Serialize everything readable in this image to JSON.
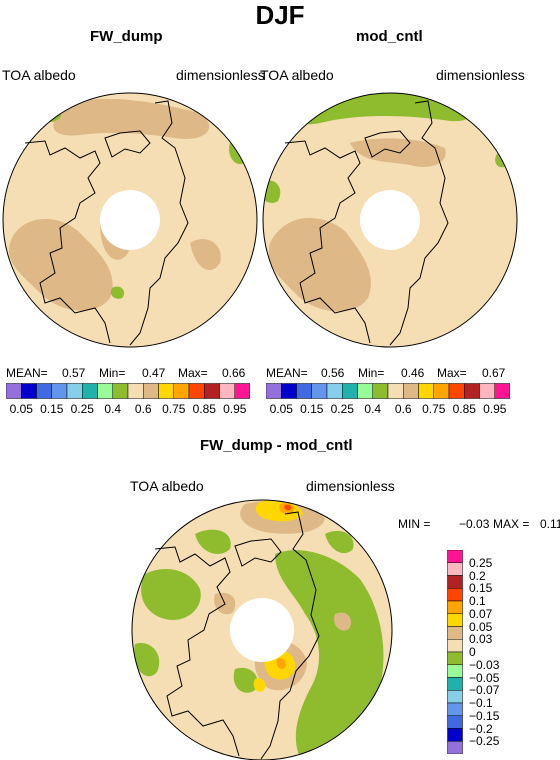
{
  "figure": {
    "title": "DJF"
  },
  "panels": [
    {
      "title": "FW_dump",
      "left_label": "TOA albedo",
      "right_label": "dimensionless",
      "stats": {
        "mean_label": "MEAN=",
        "mean": "0.57",
        "min_label": "Min=",
        "min": "0.47",
        "max_label": "Max=",
        "max": "0.66"
      }
    },
    {
      "title": "mod_cntl",
      "left_label": "TOA albedo",
      "right_label": "dimensionless",
      "stats": {
        "mean_label": "MEAN=",
        "mean": "0.56",
        "min_label": "Min=",
        "min": "0.46",
        "max_label": "Max=",
        "max": "0.67"
      }
    },
    {
      "title": "FW_dump - mod_cntl",
      "left_label": "TOA albedo",
      "right_label": "dimensionless",
      "minmax": {
        "min_label": "MIN =",
        "min": "−0.03",
        "max_label": "MAX =",
        "max": "0.11"
      }
    }
  ],
  "colorbar_top": {
    "colors": [
      "#9370db",
      "#0000cd",
      "#4169e1",
      "#6495ed",
      "#87ceeb",
      "#20b2aa",
      "#98fb98",
      "#8fbc2f",
      "#f5deb3",
      "#deb887",
      "#ffd700",
      "#ffa500",
      "#ff4500",
      "#b22222",
      "#ffb6c1",
      "#ff1493"
    ],
    "tick_labels": [
      "0.05",
      "0.15",
      "0.25",
      "0.4",
      "0.6",
      "0.75",
      "0.85",
      "0.95"
    ]
  },
  "colorbar_diff": {
    "colors": [
      "#ff1493",
      "#ffb6c1",
      "#b22222",
      "#ff4500",
      "#ffa500",
      "#ffd700",
      "#deb887",
      "#f5deb3",
      "#8fbc2f",
      "#98fb98",
      "#20b2aa",
      "#87ceeb",
      "#6495ed",
      "#4169e1",
      "#0000cd",
      "#9370db"
    ],
    "tick_labels": [
      "0.25",
      "0.2",
      "0.15",
      "0.1",
      "0.07",
      "0.05",
      "0.03",
      "0",
      "−0.03",
      "−0.05",
      "−0.07",
      "−0.1",
      "−0.15",
      "−0.2",
      "−0.25"
    ]
  },
  "map_colors": {
    "base": "#f5deb3",
    "tan": "#deb887",
    "green": "#8fbc2f",
    "yellow": "#ffd700",
    "orange": "#ffa500",
    "red": "#ff4500"
  }
}
